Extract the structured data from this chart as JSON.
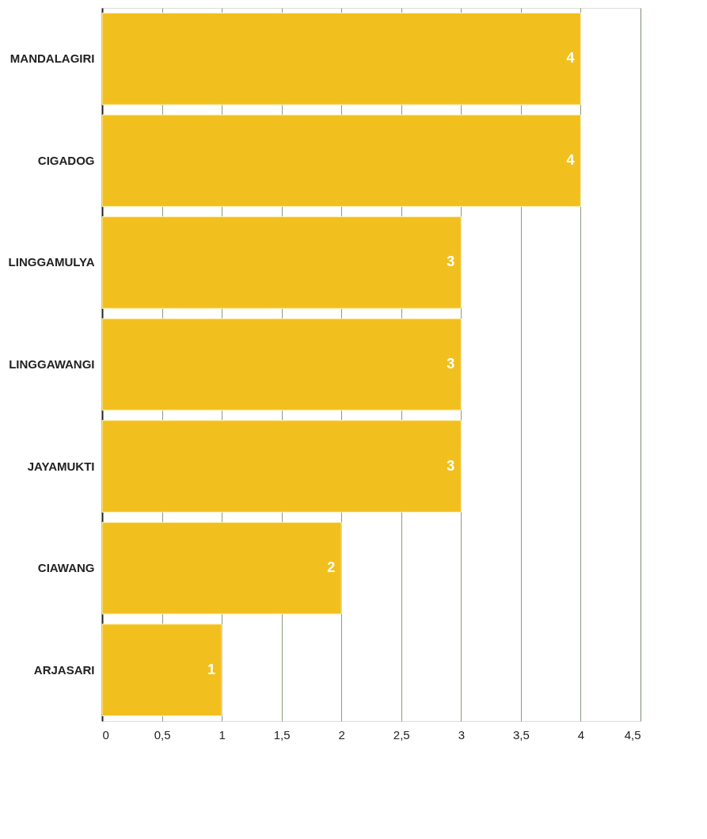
{
  "chart_data": {
    "type": "bar",
    "orientation": "horizontal",
    "categories": [
      "MANDALAGIRI",
      "CIGADOG",
      "LINGGAMULYA",
      "LINGGAWANGI",
      "JAYAMUKTI",
      "CIAWANG",
      "ARJASARI"
    ],
    "values": [
      4,
      4,
      3,
      3,
      3,
      2,
      1
    ],
    "color": "#f2c01e",
    "xlim": [
      0,
      4.5
    ],
    "xticks": [
      0,
      {
        "value": 0.5,
        "label": "0,5"
      },
      1,
      {
        "value": 1.5,
        "label": "1,5"
      },
      2,
      {
        "value": 2.5,
        "label": "2,5"
      },
      3,
      {
        "value": 3.5,
        "label": "3,5"
      },
      4,
      {
        "value": 4.5,
        "label": "4,5"
      }
    ],
    "grid": "x",
    "data_labels": true
  }
}
